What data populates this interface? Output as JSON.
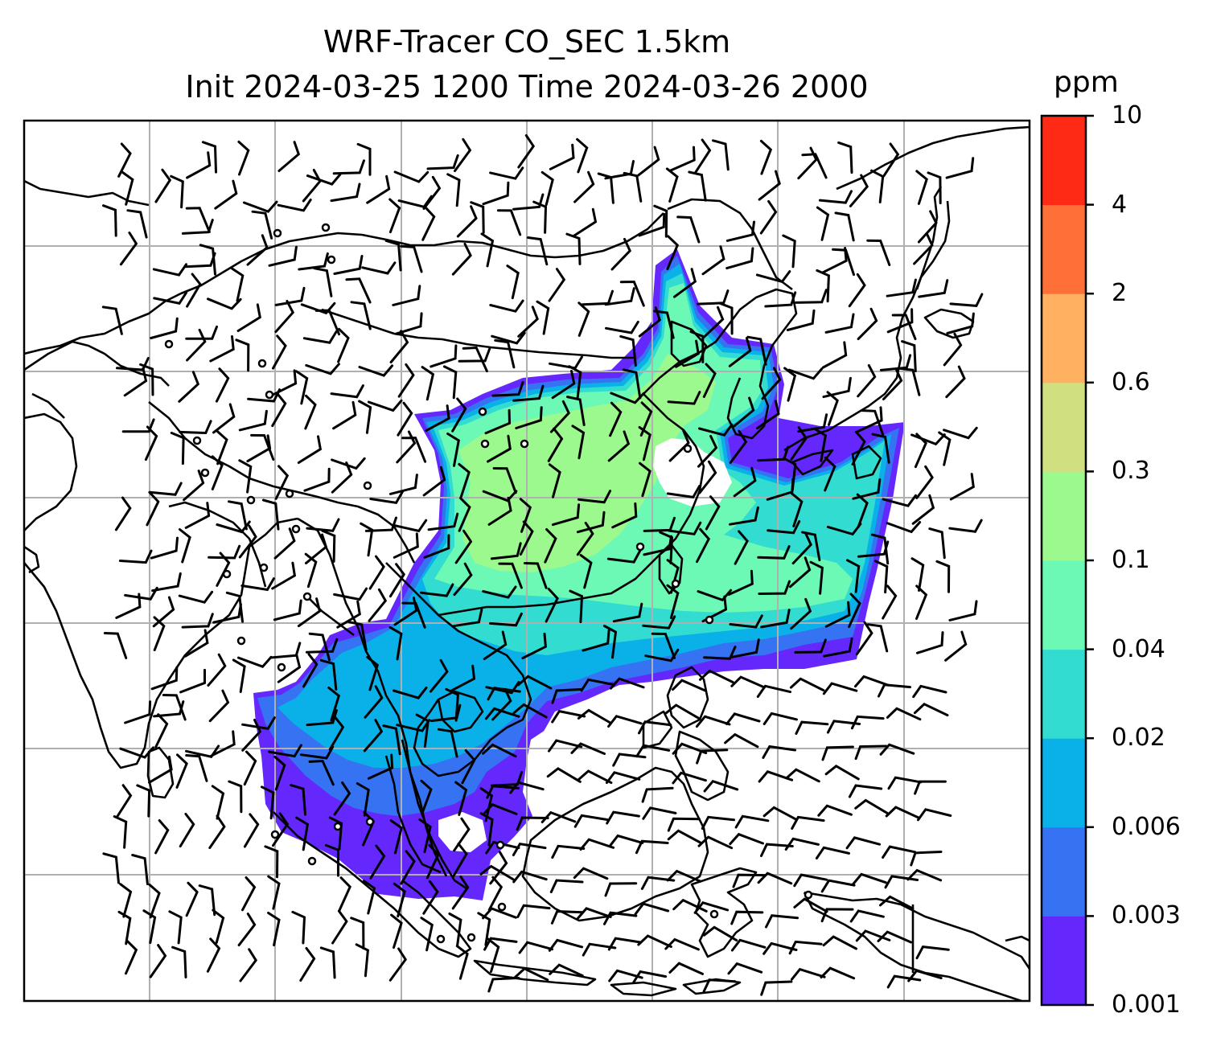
{
  "title_line1": "WRF-Tracer CO_SEC 1.5km",
  "title_line2": "Init 2024-03-25 1200 Time 2024-03-26 2000",
  "colorbar": {
    "unit": "ppm",
    "levels": [
      "0.001",
      "0.003",
      "0.006",
      "0.02",
      "0.04",
      "0.1",
      "0.3",
      "0.6",
      "2",
      "4",
      "10"
    ],
    "colors": [
      "#6428FC",
      "#3573F3",
      "#0AB0E8",
      "#32DCD1",
      "#6BF9B5",
      "#9BF98D",
      "#D0E080",
      "#FFB060",
      "#FF7038",
      "#FF2A16"
    ]
  },
  "map_region": "East Asia / Southeast Asia / Maritime Continent",
  "gridlines": true,
  "wind_barbs": true,
  "calm_wind_symbol": "small-circle"
}
